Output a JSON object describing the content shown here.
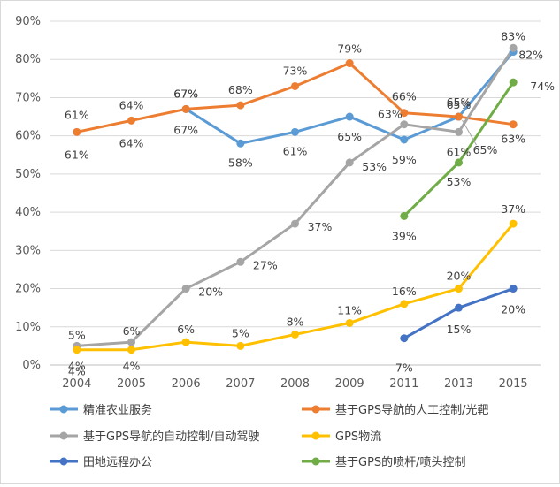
{
  "chart_data": {
    "type": "line",
    "categories": [
      "2004",
      "2005",
      "2006",
      "2007",
      "2008",
      "2009",
      "2011",
      "2013",
      "2015"
    ],
    "ylim": [
      0,
      90
    ],
    "yticks": [
      "0%",
      "10%",
      "20%",
      "30%",
      "40%",
      "50%",
      "60%",
      "70%",
      "80%",
      "90%"
    ],
    "grid": true,
    "legend_position": "bottom",
    "series": [
      {
        "name": "精准农业服务",
        "color": "#5b9bd5",
        "values": [
          null,
          null,
          67,
          58,
          61,
          65,
          59,
          65,
          82
        ],
        "labels": [
          null,
          null,
          null,
          "58%",
          "61%",
          "65%",
          "59%",
          "65%",
          "82%"
        ]
      },
      {
        "name": "基于GPS导航的人工控制/光靶",
        "color": "#ed7d31",
        "values": [
          61,
          64,
          67,
          68,
          73,
          79,
          66,
          65,
          63
        ],
        "labels": [
          "61%",
          "64%",
          "67%",
          "68%",
          "73%",
          "79%",
          "66%",
          "65%",
          "63%"
        ]
      },
      {
        "name": "基于GPS导航的自动控制/自动驾驶",
        "color": "#a5a5a5",
        "values": [
          5,
          6,
          20,
          27,
          37,
          53,
          63,
          61,
          83
        ],
        "labels": [
          "5%",
          "6%",
          "20%",
          "27%",
          "37%",
          "53%",
          "63%",
          "61%",
          "83%"
        ]
      },
      {
        "name": "GPS物流",
        "color": "#ffc000",
        "values": [
          4,
          4,
          6,
          5,
          8,
          11,
          16,
          20,
          37
        ],
        "labels": [
          "4%",
          "4%",
          "6%",
          "5%",
          "8%",
          "11%",
          "16%",
          "20%",
          "37%"
        ]
      },
      {
        "name": "田地远程办公",
        "color": "#4472c4",
        "values": [
          null,
          null,
          null,
          null,
          null,
          null,
          7,
          15,
          20
        ],
        "labels": [
          null,
          null,
          null,
          null,
          null,
          null,
          "7%",
          "15%",
          "20%"
        ]
      },
      {
        "name": "基于GPS的喷杆/喷头控制",
        "color": "#70ad47",
        "values": [
          null,
          null,
          null,
          null,
          null,
          null,
          39,
          53,
          74
        ],
        "labels": [
          null,
          null,
          null,
          null,
          null,
          null,
          "39%",
          "53%",
          "74%"
        ]
      }
    ],
    "extra_labels": [
      {
        "text": "61%",
        "cat": 0,
        "value": 61
      },
      {
        "text": "64%",
        "cat": 1,
        "value": 64
      },
      {
        "text": "67%",
        "cat": 2,
        "value": 67
      },
      {
        "text": "67%",
        "cat": 2,
        "value": 67
      },
      {
        "text": "4%",
        "cat": 0,
        "value": 4
      },
      {
        "text": "65%",
        "cat": 7,
        "value": 65
      }
    ]
  }
}
